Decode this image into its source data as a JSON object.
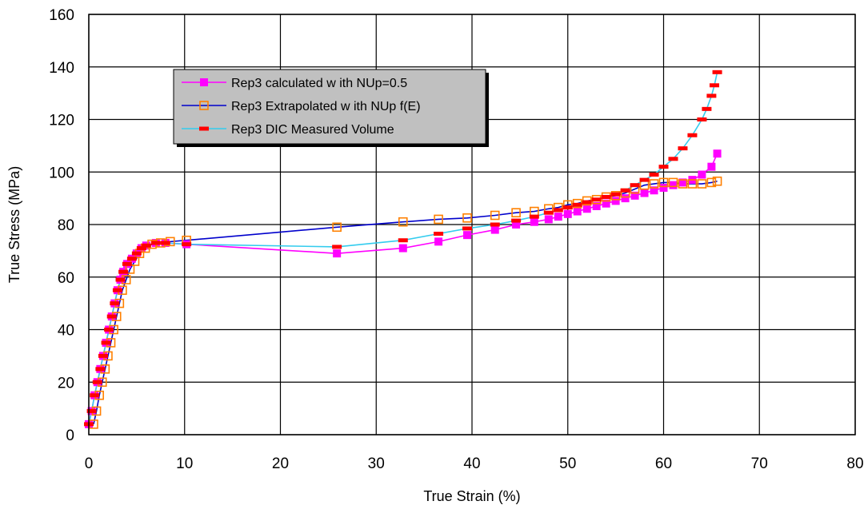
{
  "chart_data": {
    "type": "line",
    "title": "",
    "xlabel": "True Strain (%)",
    "ylabel": "True Stress (MPa)",
    "xlim": [
      0,
      80
    ],
    "ylim": [
      0,
      160
    ],
    "xticks": [
      0,
      10,
      20,
      30,
      40,
      50,
      60,
      70,
      80
    ],
    "yticks": [
      0,
      20,
      40,
      60,
      80,
      100,
      120,
      140,
      160
    ],
    "grid": true,
    "legend_position": "top-left, inside plot area",
    "series": [
      {
        "name": "Rep3 calculated w ith NUp=0.5",
        "color": "#ff00ff",
        "marker": "filled-square",
        "x": [
          0,
          0.3,
          0.6,
          0.9,
          1.2,
          1.5,
          1.8,
          2.1,
          2.4,
          2.7,
          3.0,
          3.3,
          3.6,
          4.0,
          4.5,
          5.0,
          5.5,
          6.0,
          7.0,
          8.0,
          10.2,
          25.9,
          32.8,
          36.5,
          39.5,
          42.4,
          44.6,
          46.5,
          48.0,
          49.0,
          50.0,
          51.0,
          52.0,
          53.0,
          54.0,
          55.0,
          56.0,
          57.0,
          58.0,
          59.0,
          60.0,
          61.0,
          62.0,
          63.0,
          64.0,
          65.0,
          65.6
        ],
        "y": [
          4,
          9,
          15,
          20,
          25,
          30,
          35,
          40,
          45,
          50,
          55,
          59,
          62,
          65,
          67,
          69,
          71,
          72,
          73,
          73,
          72.5,
          69,
          71,
          73.5,
          76,
          78,
          80,
          81,
          82,
          83,
          84,
          85,
          86,
          87,
          88,
          89,
          90,
          91,
          92,
          93,
          94,
          95,
          96,
          97,
          99,
          102,
          107
        ]
      },
      {
        "name": "Rep3 Extrapolated w ith NUp f(E)",
        "color": "#0000cc",
        "marker_color": "#ff8000",
        "marker": "open-square",
        "x": [
          0.5,
          0.8,
          1.1,
          1.4,
          1.7,
          2.0,
          2.3,
          2.6,
          2.9,
          3.2,
          3.5,
          3.9,
          4.3,
          4.8,
          5.3,
          5.9,
          6.6,
          7.5,
          8.5,
          10.2,
          25.9,
          32.8,
          36.5,
          39.5,
          42.4,
          44.6,
          46.5,
          48.0,
          49.0,
          50.0,
          51.0,
          52.0,
          53.0,
          54.0,
          55.0,
          56.0,
          57.0,
          58.0,
          59.0,
          60.0,
          61.0,
          62.0,
          63.0,
          64.0,
          65.0,
          65.6
        ],
        "y": [
          4,
          9,
          15,
          20,
          25,
          30,
          35,
          40,
          45,
          50,
          55,
          59,
          63,
          66,
          69,
          71,
          72.5,
          73,
          73.5,
          74,
          79,
          81,
          82,
          82.5,
          83.5,
          84.5,
          85,
          86,
          86.5,
          87.5,
          88,
          89,
          89.5,
          90.5,
          91,
          92,
          93.5,
          95,
          95.5,
          96,
          96,
          95.5,
          95.5,
          95.5,
          96,
          96.5
        ]
      },
      {
        "name": "Rep3 DIC Measured Volume",
        "color": "#33ccee",
        "marker_color": "#ff0000",
        "marker": "dash",
        "x": [
          0,
          0.3,
          0.6,
          0.9,
          1.2,
          1.5,
          1.8,
          2.1,
          2.4,
          2.7,
          3.0,
          3.3,
          3.6,
          4.0,
          4.5,
          5.0,
          5.5,
          6.0,
          7.0,
          8.0,
          10.2,
          25.9,
          32.8,
          36.5,
          39.5,
          42.4,
          44.6,
          46.5,
          48.0,
          49.0,
          50.0,
          51.0,
          52.0,
          53.0,
          54.0,
          55.0,
          56.0,
          57.0,
          58.0,
          59.0,
          60.0,
          61.0,
          62.0,
          63.0,
          64.0,
          64.5,
          65.0,
          65.3,
          65.6
        ],
        "y": [
          4,
          9,
          15,
          20,
          25,
          30,
          35,
          40,
          45,
          50,
          55,
          59,
          62,
          65,
          67,
          69,
          71,
          72,
          73,
          73,
          72.5,
          71.5,
          74,
          76.5,
          78.5,
          80,
          81.5,
          83,
          84.5,
          85.5,
          86.5,
          87.5,
          88.5,
          89.5,
          90.5,
          91.5,
          93,
          95,
          97,
          99,
          102,
          105,
          109,
          114,
          120,
          124,
          129,
          133,
          138
        ]
      }
    ]
  }
}
